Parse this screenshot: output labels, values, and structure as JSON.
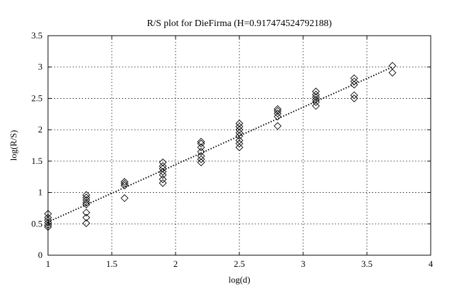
{
  "chart_data": {
    "type": "scatter",
    "title": "R/S plot for DieFirma (H=0.917474524792188)",
    "xlabel": "log(d)",
    "ylabel": "log(R/S)",
    "xlim": [
      1,
      4
    ],
    "ylim": [
      0,
      3.5
    ],
    "xticks": [
      "1",
      "1.5",
      "2",
      "2.5",
      "3",
      "3.5",
      "4"
    ],
    "yticks": [
      "0",
      "0.5",
      "1",
      "1.5",
      "2",
      "2.5",
      "3",
      "3.5"
    ],
    "grid": true,
    "marker": "diamond",
    "series": [
      {
        "points": [
          [
            1.0,
            0.66
          ],
          [
            1.0,
            0.6
          ],
          [
            1.0,
            0.56
          ],
          [
            1.0,
            0.52
          ],
          [
            1.0,
            0.48
          ],
          [
            1.0,
            0.45
          ],
          [
            1.3,
            0.96
          ],
          [
            1.3,
            0.92
          ],
          [
            1.3,
            0.88
          ],
          [
            1.3,
            0.84
          ],
          [
            1.3,
            0.81
          ],
          [
            1.3,
            0.68
          ],
          [
            1.3,
            0.6
          ],
          [
            1.3,
            0.51
          ],
          [
            1.6,
            1.17
          ],
          [
            1.6,
            1.14
          ],
          [
            1.6,
            1.11
          ],
          [
            1.6,
            0.91
          ],
          [
            1.9,
            1.48
          ],
          [
            1.9,
            1.42
          ],
          [
            1.9,
            1.38
          ],
          [
            1.9,
            1.33
          ],
          [
            1.9,
            1.28
          ],
          [
            1.9,
            1.21
          ],
          [
            1.9,
            1.15
          ],
          [
            2.2,
            1.81
          ],
          [
            2.2,
            1.78
          ],
          [
            2.2,
            1.72
          ],
          [
            2.2,
            1.65
          ],
          [
            2.2,
            1.58
          ],
          [
            2.2,
            1.53
          ],
          [
            2.2,
            1.48
          ],
          [
            2.5,
            2.1
          ],
          [
            2.5,
            2.05
          ],
          [
            2.5,
            2.0
          ],
          [
            2.5,
            1.95
          ],
          [
            2.5,
            1.9
          ],
          [
            2.5,
            1.83
          ],
          [
            2.5,
            1.78
          ],
          [
            2.5,
            1.72
          ],
          [
            2.8,
            2.33
          ],
          [
            2.8,
            2.3
          ],
          [
            2.8,
            2.26
          ],
          [
            2.8,
            2.21
          ],
          [
            2.8,
            2.06
          ],
          [
            3.1,
            2.61
          ],
          [
            3.1,
            2.56
          ],
          [
            3.1,
            2.52
          ],
          [
            3.1,
            2.48
          ],
          [
            3.1,
            2.44
          ],
          [
            3.1,
            2.38
          ],
          [
            3.4,
            2.82
          ],
          [
            3.4,
            2.77
          ],
          [
            3.4,
            2.72
          ],
          [
            3.4,
            2.55
          ],
          [
            3.4,
            2.5
          ],
          [
            3.7,
            3.02
          ],
          [
            3.7,
            2.91
          ]
        ]
      }
    ],
    "fit_line": {
      "style": "dotted",
      "x": [
        1.0,
        3.7
      ],
      "y": [
        0.53,
        3.0
      ]
    }
  }
}
